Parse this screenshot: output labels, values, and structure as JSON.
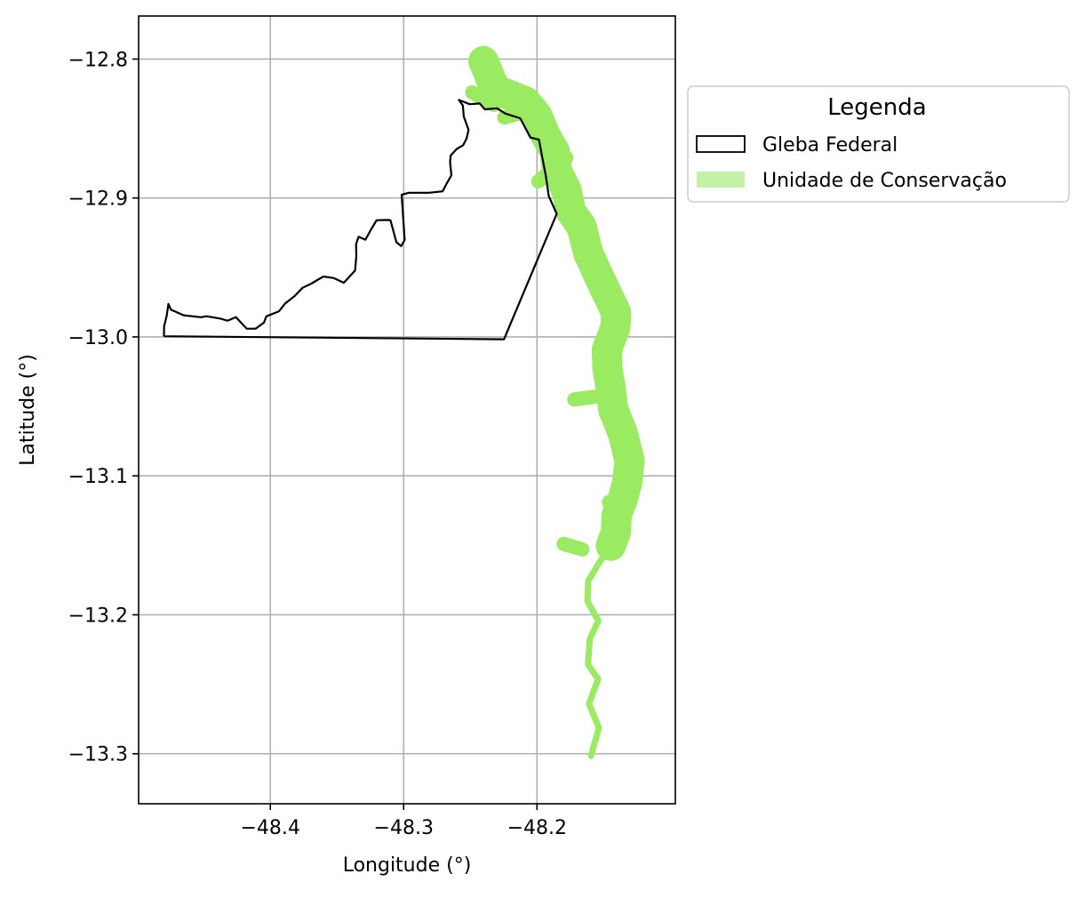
{
  "chart_data": {
    "type": "map",
    "title": "",
    "xlabel": "Longitude (°)",
    "ylabel": "Latitude (°)",
    "xlim": [
      -48.4988,
      -48.0962
    ],
    "ylim": [
      -13.336,
      -12.769
    ],
    "xticks": [
      -48.4,
      -48.3,
      -48.2
    ],
    "xtick_labels": [
      "−48.4",
      "−48.3",
      "−48.2"
    ],
    "yticks": [
      -12.8,
      -12.9,
      -13.0,
      -13.1,
      -13.2,
      -13.3
    ],
    "ytick_labels": [
      "−12.8",
      "−12.9",
      "−13.0",
      "−13.1",
      "−13.2",
      "−13.3"
    ],
    "grid": true,
    "legend": {
      "title": "Legenda",
      "placement": "outside-upper-right",
      "entries": [
        {
          "label": "Gleba Federal",
          "style": "outline",
          "color": "#000000"
        },
        {
          "label": "Unidade de Conservação",
          "style": "fill",
          "color": "#c4f2a5"
        }
      ]
    },
    "series": [
      {
        "name": "Gleba Federal",
        "kind": "polygon-outline",
        "color": "#000000",
        "points": [
          [
            -48.4798,
            -12.9995
          ],
          [
            -48.4797,
            -12.9923
          ],
          [
            -48.4777,
            -12.9844
          ],
          [
            -48.4765,
            -12.9763
          ],
          [
            -48.4746,
            -12.9803
          ],
          [
            -48.465,
            -12.9844
          ],
          [
            -48.4521,
            -12.9858
          ],
          [
            -48.4478,
            -12.9851
          ],
          [
            -48.4376,
            -12.9868
          ],
          [
            -48.432,
            -12.9883
          ],
          [
            -48.4259,
            -12.9857
          ],
          [
            -48.4177,
            -12.9941
          ],
          [
            -48.4111,
            -12.9941
          ],
          [
            -48.4048,
            -12.9897
          ],
          [
            -48.403,
            -12.9852
          ],
          [
            -48.3935,
            -12.9815
          ],
          [
            -48.389,
            -12.976
          ],
          [
            -48.3818,
            -12.9706
          ],
          [
            -48.3759,
            -12.9647
          ],
          [
            -48.3693,
            -12.9616
          ],
          [
            -48.3602,
            -12.9565
          ],
          [
            -48.3525,
            -12.9576
          ],
          [
            -48.3449,
            -12.961
          ],
          [
            -48.3364,
            -12.9522
          ],
          [
            -48.3355,
            -12.9418
          ],
          [
            -48.3357,
            -12.9333
          ],
          [
            -48.3338,
            -12.9279
          ],
          [
            -48.3287,
            -12.93
          ],
          [
            -48.3242,
            -12.9223
          ],
          [
            -48.3203,
            -12.916
          ],
          [
            -48.3114,
            -12.9158
          ],
          [
            -48.3099,
            -12.916
          ],
          [
            -48.3054,
            -12.9318
          ],
          [
            -48.3019,
            -12.9346
          ],
          [
            -48.2992,
            -12.9303
          ],
          [
            -48.3015,
            -12.8977
          ],
          [
            -48.2962,
            -12.8962
          ],
          [
            -48.281,
            -12.8962
          ],
          [
            -48.2708,
            -12.8952
          ],
          [
            -48.2681,
            -12.8903
          ],
          [
            -48.2642,
            -12.8836
          ],
          [
            -48.2652,
            -12.8743
          ],
          [
            -48.2648,
            -12.8695
          ],
          [
            -48.2602,
            -12.8647
          ],
          [
            -48.2554,
            -12.862
          ],
          [
            -48.2528,
            -12.8572
          ],
          [
            -48.2513,
            -12.8509
          ],
          [
            -48.2549,
            -12.8414
          ],
          [
            -48.2556,
            -12.8335
          ],
          [
            -48.2586,
            -12.8294
          ],
          [
            -48.2505,
            -12.8325
          ],
          [
            -48.2429,
            -12.832
          ],
          [
            -48.2391,
            -12.8362
          ],
          [
            -48.2299,
            -12.8354
          ],
          [
            -48.2238,
            -12.8392
          ],
          [
            -48.2126,
            -12.8426
          ],
          [
            -48.2049,
            -12.8565
          ],
          [
            -48.1985,
            -12.858
          ],
          [
            -48.1961,
            -12.8703
          ],
          [
            -48.1934,
            -12.8839
          ],
          [
            -48.1912,
            -12.8985
          ],
          [
            -48.1852,
            -12.9114
          ],
          [
            -48.2247,
            -13.0017
          ],
          [
            -48.4798,
            -12.9995
          ]
        ]
      },
      {
        "name": "Unidade de Conservação",
        "kind": "buffered-line",
        "color": "#9aea62",
        "points": [
          [
            -48.2402,
            -12.8015
          ],
          [
            -48.2369,
            -12.8085
          ],
          [
            -48.2343,
            -12.8156
          ],
          [
            -48.229,
            -12.8236
          ],
          [
            -48.2226,
            -12.8251
          ],
          [
            -48.2085,
            -12.8306
          ],
          [
            -48.1997,
            -12.8407
          ],
          [
            -48.1941,
            -12.854
          ],
          [
            -48.1865,
            -12.8667
          ],
          [
            -48.1851,
            -12.8801
          ],
          [
            -48.1776,
            -12.895
          ],
          [
            -48.1747,
            -12.9095
          ],
          [
            -48.1667,
            -12.9202
          ],
          [
            -48.1614,
            -12.9399
          ],
          [
            -48.1539,
            -12.9557
          ],
          [
            -48.1466,
            -12.9704
          ],
          [
            -48.1406,
            -12.9825
          ],
          [
            -48.1412,
            -12.9933
          ],
          [
            -48.1476,
            -13.0094
          ],
          [
            -48.1471,
            -13.0228
          ],
          [
            -48.1449,
            -13.0354
          ],
          [
            -48.1428,
            -13.0522
          ],
          [
            -48.1355,
            -13.0696
          ],
          [
            -48.1305,
            -13.0891
          ],
          [
            -48.1323,
            -13.1047
          ],
          [
            -48.1357,
            -13.117
          ],
          [
            -48.1402,
            -13.1282
          ],
          [
            -48.1408,
            -13.1405
          ],
          [
            -48.1446,
            -13.1503
          ],
          [
            -48.1532,
            -13.1623
          ],
          [
            -48.1615,
            -13.1755
          ],
          [
            -48.1621,
            -13.1902
          ],
          [
            -48.154,
            -13.2043
          ],
          [
            -48.1604,
            -13.2174
          ],
          [
            -48.1617,
            -13.2358
          ],
          [
            -48.1541,
            -13.2463
          ],
          [
            -48.161,
            -13.2641
          ],
          [
            -48.1535,
            -13.2814
          ],
          [
            -48.1595,
            -13.3015
          ]
        ],
        "branches": [
          [
            [
              -48.2485,
              -12.824
            ],
            [
              -48.2322,
              -12.833
            ]
          ],
          [
            [
              -48.2245,
              -12.842
            ],
            [
              -48.209,
              -12.838
            ]
          ],
          [
            [
              -48.178,
              -12.871
            ],
            [
              -48.199,
              -12.888
            ]
          ],
          [
            [
              -48.172,
              -13.045
            ],
            [
              -48.148,
              -13.042
            ]
          ],
          [
            [
              -48.146,
              -13.119
            ],
            [
              -48.135,
              -13.125
            ]
          ],
          [
            [
              -48.18,
              -13.149
            ],
            [
              -48.166,
              -13.153
            ]
          ]
        ]
      }
    ]
  }
}
